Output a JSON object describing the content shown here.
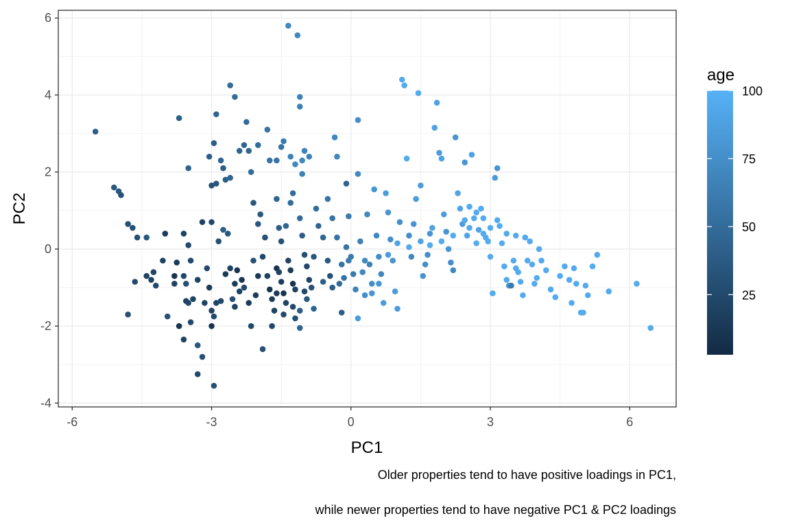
{
  "chart_data": {
    "type": "scatter",
    "title": "",
    "xlabel": "PC1",
    "ylabel": "PC2",
    "xlim": [
      -6.3,
      7.0
    ],
    "ylim": [
      -4.1,
      6.2
    ],
    "xticks": [
      -6,
      -3,
      0,
      3,
      6
    ],
    "yticks": [
      -4,
      -2,
      0,
      2,
      4,
      6
    ],
    "xtick_labels": [
      "-6",
      "-3",
      "0",
      "3",
      "6"
    ],
    "ytick_labels": [
      "-4",
      "-2",
      "0",
      "2",
      "4",
      "6"
    ],
    "grid": true,
    "color_by": "age",
    "color_scale": {
      "low": "#132B43",
      "high": "#56B1F7",
      "min": 2.9,
      "max": 100
    },
    "legend": {
      "title": "age",
      "position": "right",
      "breaks": [
        25,
        50,
        75,
        100
      ],
      "labels": [
        "25",
        "50",
        "75",
        "100"
      ]
    },
    "caption": [
      "Older properties tend to have positive loadings in PC1,",
      "while newer properties tend to have negative PC1 & PC2 loadings"
    ],
    "points": [
      [
        -5.5,
        3.05,
        40
      ],
      [
        -5.1,
        1.6,
        35
      ],
      [
        -5.0,
        1.5,
        35
      ],
      [
        -4.95,
        1.4,
        30
      ],
      [
        -4.8,
        0.65,
        30
      ],
      [
        -4.7,
        0.55,
        30
      ],
      [
        -4.6,
        0.3,
        30
      ],
      [
        -4.4,
        0.3,
        35
      ],
      [
        -4.8,
        -1.7,
        30
      ],
      [
        -4.65,
        -0.85,
        25
      ],
      [
        -4.4,
        -0.7,
        20
      ],
      [
        -4.3,
        -0.8,
        20
      ],
      [
        -4.25,
        -0.6,
        22
      ],
      [
        -4.0,
        0.4,
        15
      ],
      [
        -4.05,
        -0.3,
        20
      ],
      [
        -3.95,
        -1.75,
        30
      ],
      [
        -3.8,
        -0.7,
        10
      ],
      [
        -3.75,
        -0.35,
        15
      ],
      [
        -3.6,
        -0.7,
        25
      ],
      [
        -3.55,
        -0.9,
        30
      ],
      [
        -3.7,
        3.4,
        40
      ],
      [
        -3.5,
        2.1,
        45
      ],
      [
        -3.6,
        0.4,
        20
      ],
      [
        -3.5,
        0.1,
        25
      ],
      [
        -3.45,
        -0.3,
        25
      ],
      [
        -3.3,
        -0.8,
        20
      ],
      [
        -3.4,
        -1.3,
        20
      ],
      [
        -3.5,
        -1.4,
        25
      ],
      [
        -3.55,
        -1.35,
        20
      ],
      [
        -3.45,
        -1.9,
        25
      ],
      [
        -3.3,
        -2.5,
        35
      ],
      [
        -3.2,
        -2.8,
        30
      ],
      [
        -3.6,
        -2.35,
        20
      ],
      [
        -3.7,
        -2.0,
        10
      ],
      [
        -3.15,
        -1.4,
        20
      ],
      [
        -3.1,
        -0.5,
        25
      ],
      [
        -3.05,
        -1.0,
        15
      ],
      [
        -3.0,
        -1.6,
        20
      ],
      [
        -2.9,
        -1.4,
        20
      ],
      [
        -2.95,
        -1.75,
        25
      ],
      [
        -3.0,
        -2.0,
        10
      ],
      [
        -2.95,
        -3.55,
        30
      ],
      [
        -3.3,
        -3.25,
        25
      ],
      [
        -3.2,
        0.7,
        20
      ],
      [
        -3.0,
        0.7,
        25
      ],
      [
        -3.0,
        1.65,
        30
      ],
      [
        -2.9,
        1.7,
        35
      ],
      [
        -3.05,
        2.4,
        40
      ],
      [
        -2.95,
        2.75,
        40
      ],
      [
        -2.8,
        2.3,
        45
      ],
      [
        -2.9,
        3.5,
        45
      ],
      [
        -2.75,
        2.1,
        40
      ],
      [
        -2.7,
        1.8,
        40
      ],
      [
        -2.6,
        1.85,
        45
      ],
      [
        -2.85,
        0.2,
        30
      ],
      [
        -2.75,
        0.5,
        40
      ],
      [
        -2.65,
        0.4,
        35
      ],
      [
        -2.6,
        -0.5,
        20
      ],
      [
        -2.5,
        -0.9,
        15
      ],
      [
        -2.45,
        -0.55,
        10
      ],
      [
        -2.5,
        -1.5,
        20
      ],
      [
        -2.55,
        -1.3,
        30
      ],
      [
        -2.4,
        -1.1,
        20
      ],
      [
        -2.3,
        -1.0,
        25
      ],
      [
        -2.2,
        -1.4,
        15
      ],
      [
        -2.15,
        -2.0,
        25
      ],
      [
        -2.1,
        -0.3,
        30
      ],
      [
        -2.0,
        -0.7,
        15
      ],
      [
        -2.6,
        4.25,
        50
      ],
      [
        -2.5,
        3.95,
        50
      ],
      [
        -2.4,
        2.55,
        45
      ],
      [
        -2.3,
        2.7,
        45
      ],
      [
        -2.25,
        3.3,
        50
      ],
      [
        -2.2,
        2.55,
        45
      ],
      [
        -2.15,
        2.0,
        50
      ],
      [
        -2.0,
        2.7,
        50
      ],
      [
        -2.1,
        1.2,
        35
      ],
      [
        -2.0,
        0.65,
        35
      ],
      [
        -1.95,
        0.9,
        35
      ],
      [
        -1.85,
        0.3,
        30
      ],
      [
        -1.9,
        -0.2,
        25
      ],
      [
        -1.8,
        -0.7,
        20
      ],
      [
        -1.75,
        -1.05,
        10
      ],
      [
        -1.7,
        -1.3,
        15
      ],
      [
        -1.65,
        -1.6,
        20
      ],
      [
        -1.7,
        -2.0,
        25
      ],
      [
        -1.6,
        -0.5,
        10
      ],
      [
        -1.55,
        -0.6,
        20
      ],
      [
        -1.5,
        -0.85,
        15
      ],
      [
        -1.45,
        -1.15,
        10
      ],
      [
        -1.4,
        -1.4,
        20
      ],
      [
        -1.45,
        -1.7,
        25
      ],
      [
        -1.9,
        -2.6,
        30
      ],
      [
        -1.8,
        3.1,
        55
      ],
      [
        -1.75,
        2.3,
        55
      ],
      [
        -1.6,
        2.3,
        55
      ],
      [
        -1.5,
        2.65,
        55
      ],
      [
        -1.45,
        2.8,
        60
      ],
      [
        -1.6,
        1.3,
        45
      ],
      [
        -1.55,
        0.55,
        40
      ],
      [
        -1.5,
        0.2,
        30
      ],
      [
        -1.4,
        0.6,
        45
      ],
      [
        -1.35,
        -0.3,
        20
      ],
      [
        -1.3,
        -0.55,
        15
      ],
      [
        -1.25,
        -0.9,
        10
      ],
      [
        -1.2,
        -1.05,
        20
      ],
      [
        -1.25,
        -1.5,
        25
      ],
      [
        -1.2,
        -1.8,
        30
      ],
      [
        -1.3,
        1.2,
        50
      ],
      [
        -1.25,
        1.45,
        50
      ],
      [
        -1.3,
        2.4,
        65
      ],
      [
        -1.2,
        2.2,
        70
      ],
      [
        -1.05,
        2.3,
        70
      ],
      [
        -1.05,
        1.95,
        65
      ],
      [
        -1.35,
        5.8,
        70
      ],
      [
        -1.15,
        5.55,
        70
      ],
      [
        -1.1,
        3.95,
        65
      ],
      [
        -1.1,
        3.7,
        65
      ],
      [
        -1.0,
        2.55,
        65
      ],
      [
        -0.9,
        2.4,
        65
      ],
      [
        -1.1,
        0.8,
        50
      ],
      [
        -1.05,
        0.35,
        40
      ],
      [
        -1.0,
        -0.15,
        30
      ],
      [
        -0.95,
        -0.45,
        25
      ],
      [
        -0.9,
        -0.8,
        20
      ],
      [
        -0.85,
        -1.0,
        30
      ],
      [
        -0.95,
        -1.3,
        35
      ],
      [
        -1.1,
        -1.6,
        40
      ],
      [
        -1.1,
        -2.05,
        45
      ],
      [
        -0.8,
        -1.55,
        45
      ],
      [
        -0.75,
        1.05,
        50
      ],
      [
        -0.7,
        0.6,
        45
      ],
      [
        -0.6,
        0.3,
        45
      ],
      [
        -0.5,
        -0.3,
        35
      ],
      [
        -0.45,
        -0.7,
        30
      ],
      [
        -0.4,
        -1.0,
        40
      ],
      [
        -0.5,
        1.3,
        55
      ],
      [
        -0.4,
        0.8,
        55
      ],
      [
        -0.35,
        2.9,
        70
      ],
      [
        -0.3,
        2.4,
        70
      ],
      [
        -0.3,
        0.3,
        55
      ],
      [
        -0.25,
        -0.9,
        50
      ],
      [
        -0.2,
        -0.4,
        55
      ],
      [
        -0.15,
        -0.75,
        55
      ],
      [
        -0.1,
        0.05,
        55
      ],
      [
        -0.05,
        -0.3,
        60
      ],
      [
        -0.1,
        1.7,
        45
      ],
      [
        -0.05,
        0.85,
        60
      ],
      [
        0.0,
        -0.2,
        60
      ],
      [
        0.05,
        -0.65,
        60
      ],
      [
        0.1,
        -1.05,
        65
      ],
      [
        0.15,
        1.95,
        70
      ],
      [
        0.15,
        3.35,
        75
      ],
      [
        0.2,
        0.2,
        65
      ],
      [
        0.25,
        -0.6,
        70
      ],
      [
        0.3,
        -1.2,
        75
      ],
      [
        0.35,
        0.9,
        70
      ],
      [
        0.4,
        -0.4,
        65
      ],
      [
        0.45,
        -0.9,
        75
      ],
      [
        0.5,
        1.55,
        80
      ],
      [
        0.55,
        0.35,
        70
      ],
      [
        0.6,
        -0.2,
        75
      ],
      [
        0.65,
        -0.65,
        70
      ],
      [
        0.7,
        -1.4,
        85
      ],
      [
        0.75,
        1.45,
        85
      ],
      [
        0.8,
        0.95,
        80
      ],
      [
        0.85,
        0.25,
        75
      ],
      [
        0.9,
        -0.3,
        80
      ],
      [
        0.95,
        -1.1,
        85
      ],
      [
        1.0,
        -1.55,
        85
      ],
      [
        1.05,
        0.7,
        75
      ],
      [
        1.1,
        4.4,
        95
      ],
      [
        1.15,
        4.25,
        95
      ],
      [
        1.2,
        2.35,
        95
      ],
      [
        1.25,
        0.35,
        75
      ],
      [
        1.3,
        -0.2,
        70
      ],
      [
        1.35,
        0.65,
        80
      ],
      [
        1.4,
        1.3,
        85
      ],
      [
        1.45,
        4.05,
        95
      ],
      [
        1.5,
        1.65,
        85
      ],
      [
        1.55,
        -0.7,
        80
      ],
      [
        1.6,
        -0.4,
        75
      ],
      [
        1.65,
        -0.15,
        75
      ],
      [
        1.7,
        0.4,
        80
      ],
      [
        1.75,
        0.55,
        90
      ],
      [
        1.8,
        3.15,
        90
      ],
      [
        1.85,
        3.8,
        90
      ],
      [
        1.9,
        2.5,
        85
      ],
      [
        1.95,
        2.35,
        90
      ],
      [
        2.0,
        0.9,
        85
      ],
      [
        2.05,
        0.45,
        80
      ],
      [
        2.1,
        0.0,
        80
      ],
      [
        2.15,
        -0.35,
        75
      ],
      [
        2.2,
        -0.55,
        70
      ],
      [
        2.25,
        2.9,
        80
      ],
      [
        2.3,
        1.45,
        90
      ],
      [
        2.35,
        1.05,
        90
      ],
      [
        2.4,
        0.65,
        85
      ],
      [
        2.45,
        2.25,
        80
      ],
      [
        2.5,
        0.35,
        90
      ],
      [
        2.55,
        1.1,
        95
      ],
      [
        2.6,
        2.45,
        90
      ],
      [
        2.65,
        0.8,
        95
      ],
      [
        2.7,
        0.15,
        95
      ],
      [
        2.75,
        0.5,
        90
      ],
      [
        2.8,
        1.05,
        95
      ],
      [
        2.85,
        0.4,
        95
      ],
      [
        2.9,
        0.3,
        95
      ],
      [
        2.95,
        0.2,
        95
      ],
      [
        3.0,
        -0.2,
        95
      ],
      [
        3.05,
        -1.15,
        95
      ],
      [
        3.1,
        1.85,
        85
      ],
      [
        3.15,
        2.1,
        80
      ],
      [
        3.2,
        0.6,
        95
      ],
      [
        3.25,
        0.15,
        95
      ],
      [
        3.3,
        -0.45,
        95
      ],
      [
        3.35,
        -0.8,
        95
      ],
      [
        3.4,
        -0.95,
        80
      ],
      [
        3.45,
        -0.95,
        60
      ],
      [
        3.5,
        -0.3,
        95
      ],
      [
        3.55,
        -0.5,
        95
      ],
      [
        3.6,
        -0.6,
        95
      ],
      [
        3.65,
        -0.85,
        95
      ],
      [
        3.7,
        -1.2,
        95
      ],
      [
        3.75,
        0.3,
        95
      ],
      [
        3.8,
        -0.3,
        95
      ],
      [
        3.85,
        0.2,
        95
      ],
      [
        3.9,
        -0.4,
        95
      ],
      [
        3.95,
        -0.9,
        95
      ],
      [
        4.0,
        -0.75,
        95
      ],
      [
        4.05,
        0.0,
        95
      ],
      [
        4.1,
        -0.3,
        95
      ],
      [
        4.2,
        -0.55,
        95
      ],
      [
        4.3,
        -1.05,
        95
      ],
      [
        4.4,
        -1.25,
        95
      ],
      [
        4.5,
        -0.7,
        95
      ],
      [
        4.6,
        -0.45,
        95
      ],
      [
        4.7,
        -0.8,
        95
      ],
      [
        4.75,
        -1.4,
        95
      ],
      [
        4.8,
        -0.5,
        95
      ],
      [
        4.85,
        -0.9,
        95
      ],
      [
        4.95,
        -1.65,
        95
      ],
      [
        5.0,
        -1.65,
        95
      ],
      [
        5.05,
        -0.95,
        95
      ],
      [
        5.1,
        -1.2,
        95
      ],
      [
        5.2,
        -0.45,
        95
      ],
      [
        5.3,
        -0.15,
        95
      ],
      [
        5.55,
        -1.1,
        95
      ],
      [
        6.15,
        -0.9,
        95
      ],
      [
        6.45,
        -2.05,
        95
      ],
      [
        3.55,
        0.35,
        95
      ],
      [
        3.35,
        0.4,
        95
      ],
      [
        3.15,
        0.75,
        95
      ],
      [
        3.0,
        0.55,
        95
      ],
      [
        2.85,
        0.8,
        95
      ],
      [
        2.7,
        0.95,
        95
      ],
      [
        2.55,
        0.55,
        95
      ],
      [
        2.45,
        0.75,
        95
      ],
      [
        2.2,
        0.35,
        95
      ],
      [
        1.95,
        0.2,
        95
      ],
      [
        1.7,
        0.1,
        95
      ],
      [
        1.5,
        0.2,
        90
      ],
      [
        1.25,
        0.05,
        95
      ],
      [
        1.0,
        0.15,
        90
      ],
      [
        0.8,
        -0.15,
        85
      ],
      [
        0.6,
        -0.9,
        80
      ],
      [
        0.45,
        -1.15,
        80
      ],
      [
        0.3,
        -0.3,
        70
      ],
      [
        0.15,
        -1.8,
        85
      ],
      [
        -0.2,
        -1.65,
        40
      ],
      [
        -0.6,
        -0.85,
        40
      ],
      [
        -0.8,
        -0.2,
        35
      ],
      [
        -2.35,
        -0.8,
        10
      ],
      [
        -2.05,
        -1.2,
        15
      ],
      [
        -2.7,
        -0.65,
        15
      ],
      [
        -3.8,
        -0.9,
        20
      ],
      [
        -4.2,
        -0.95,
        25
      ],
      [
        -1.0,
        -1.1,
        25
      ],
      [
        -1.6,
        -1.15,
        15
      ],
      [
        -2.8,
        -1.35,
        25
      ]
    ]
  }
}
